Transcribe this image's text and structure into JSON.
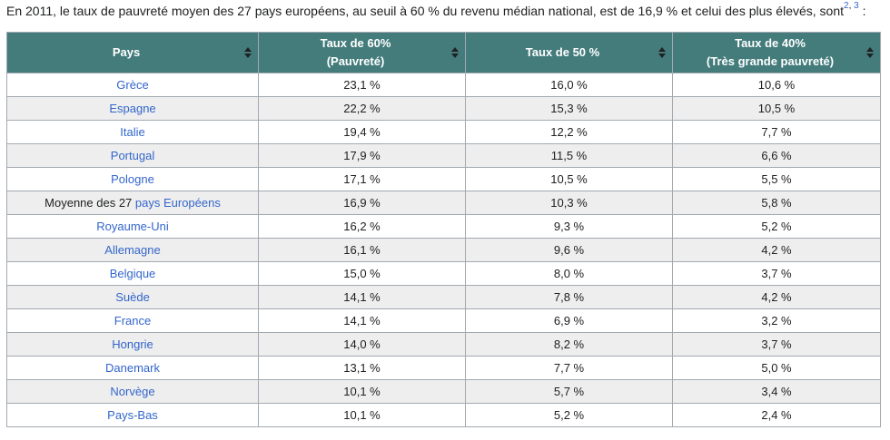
{
  "intro": {
    "text": "En 2011, le taux de pauvreté moyen des 27 pays européens, au seuil à 60 % du revenu médian national, est de 16,9 % et celui des plus élevés, sont",
    "ref1": "2",
    "ref_sep": ", ",
    "ref2": "3",
    "tail": " :"
  },
  "table": {
    "headers": [
      {
        "line1": "Pays",
        "line2": ""
      },
      {
        "line1": "Taux de 60%",
        "line2": "(Pauvreté)"
      },
      {
        "line1": "Taux de 50 %",
        "line2": ""
      },
      {
        "line1": "Taux de 40%",
        "line2": "(Très grande pauvreté)"
      }
    ],
    "rows": [
      {
        "country": "Grèce",
        "t60": "23,1 %",
        "t50": "16,0 %",
        "t40": "10,6 %"
      },
      {
        "country": "Espagne",
        "t60": "22,2 %",
        "t50": "15,3 %",
        "t40": "10,5 %"
      },
      {
        "country": "Italie",
        "t60": "19,4 %",
        "t50": "12,2 %",
        "t40": "7,7 %"
      },
      {
        "country": "Portugal",
        "t60": "17,9 %",
        "t50": "11,5 %",
        "t40": "6,6 %"
      },
      {
        "country": "Pologne",
        "t60": "17,1 %",
        "t50": "10,5 %",
        "t40": "5,5 %"
      },
      {
        "country_prefix": "Moyenne des 27 ",
        "country_link": "pays Européens",
        "t60": "16,9 %",
        "t50": "10,3 %",
        "t40": "5,8 %"
      },
      {
        "country": "Royaume-Uni",
        "t60": "16,2 %",
        "t50": "9,3 %",
        "t40": "5,2 %"
      },
      {
        "country": "Allemagne",
        "t60": "16,1 %",
        "t50": "9,6 %",
        "t40": "4,2 %"
      },
      {
        "country": "Belgique",
        "t60": "15,0 %",
        "t50": "8,0 %",
        "t40": "3,7 %"
      },
      {
        "country": "Suède",
        "t60": "14,1 %",
        "t50": "7,8 %",
        "t40": "4,2 %"
      },
      {
        "country": "France",
        "t60": "14,1 %",
        "t50": "6,9 %",
        "t40": "3,2 %"
      },
      {
        "country": "Hongrie",
        "t60": "14,0 %",
        "t50": "8,2 %",
        "t40": "3,7 %"
      },
      {
        "country": "Danemark",
        "t60": "13,1 %",
        "t50": "7,7 %",
        "t40": "5,0 %"
      },
      {
        "country": "Norvège",
        "t60": "10,1 %",
        "t50": "5,7 %",
        "t40": "3,4 %"
      },
      {
        "country": "Pays-Bas",
        "t60": "10,1 %",
        "t50": "5,2 %",
        "t40": "2,4 %"
      }
    ]
  },
  "colors": {
    "header_bg": "#447c7c",
    "link": "#3366cc",
    "row_alt": "#eeeeee",
    "border": "#a2a9b1"
  },
  "icons": {
    "sort": "sort-arrows-icon"
  }
}
